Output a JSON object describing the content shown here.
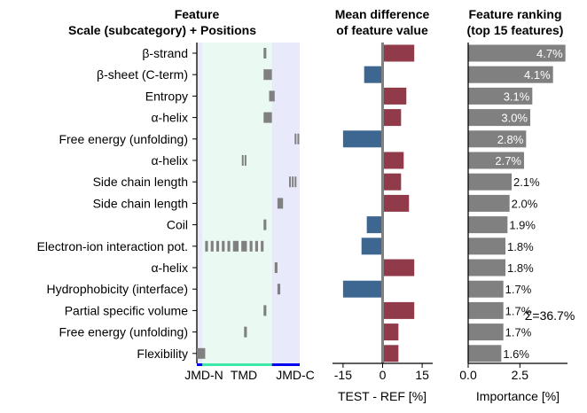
{
  "colors": {
    "jmd_bg": "#e9e9fc",
    "tmd_bg": "#eafaf3",
    "position_mark": "#808080",
    "positive": "#913a4a",
    "negative": "#3d6690",
    "ranking_bar": "#808080",
    "tmd_line": "#3ae8a8",
    "jmd_line": "#0000ee",
    "zero_line": "#808080"
  },
  "panels": {
    "feature": {
      "title_line1": "Feature",
      "title_line2": "Scale (subcategory)  +  Positions",
      "x_labels": [
        "JMD-N",
        "TMD",
        "JMD-C"
      ]
    },
    "difference": {
      "title_line1": "Mean difference",
      "title_line2": "of feature value",
      "xlabel": "TEST - REF [%]"
    },
    "ranking": {
      "title_line1": "Feature ranking",
      "title_line2": "(top 15 features)",
      "xlabel": "Importance [%]",
      "sum_label": "Σ=36.7%"
    }
  },
  "chart_data": [
    {
      "type": "table",
      "name": "feature-positions",
      "features": [
        "β-strand",
        "β-sheet (C-term)",
        "Entropy",
        "α-helix",
        "Free energy (unfolding)",
        "α-helix",
        "Side chain length",
        "Side chain length",
        "Coil",
        "Electron-ion interaction pot.",
        "α-helix",
        "Hydrophobicity (interface)",
        "Partial specific volume",
        "Free energy (unfolding)",
        "Flexibility"
      ],
      "positions": [
        [
          24
        ],
        [
          24,
          25,
          26
        ],
        [
          26,
          27
        ],
        [
          24,
          25,
          26
        ],
        [
          35,
          36
        ],
        [
          16,
          17
        ],
        [
          33,
          34,
          35
        ],
        [
          29,
          30
        ],
        [
          24
        ],
        [
          3,
          5,
          7,
          9,
          11,
          13,
          14,
          16,
          17,
          19,
          21,
          23
        ],
        [
          28
        ],
        [
          29
        ],
        [
          24
        ],
        [
          17
        ],
        [
          0,
          1,
          2
        ]
      ],
      "position_range": [
        0,
        37
      ],
      "regions": [
        {
          "name": "JMD-N",
          "start": 0,
          "end": 2
        },
        {
          "name": "TMD",
          "start": 2,
          "end": 27
        },
        {
          "name": "JMD-C",
          "start": 27,
          "end": 37
        }
      ]
    },
    {
      "type": "bar",
      "name": "mean-difference",
      "orientation": "horizontal",
      "categories": [
        "β-strand",
        "β-sheet (C-term)",
        "Entropy",
        "α-helix",
        "Free energy (unfolding)",
        "α-helix",
        "Side chain length",
        "Side chain length",
        "Coil",
        "Electron-ion interaction pot.",
        "α-helix",
        "Hydrophobicity (interface)",
        "Partial specific volume",
        "Free energy (unfolding)",
        "Flexibility"
      ],
      "values": [
        12,
        -7,
        9,
        7,
        -15,
        8,
        7,
        10,
        -6,
        -8,
        12,
        -15,
        12,
        6,
        6
      ],
      "xlim": [
        -19,
        19
      ],
      "xticks": [
        -15,
        0,
        15
      ],
      "xlabel": "TEST - REF [%]"
    },
    {
      "type": "bar",
      "name": "feature-ranking",
      "orientation": "horizontal",
      "categories": [
        "β-strand",
        "β-sheet (C-term)",
        "Entropy",
        "α-helix",
        "Free energy (unfolding)",
        "α-helix",
        "Side chain length",
        "Side chain length",
        "Coil",
        "Electron-ion interaction pot.",
        "α-helix",
        "Hydrophobicity (interface)",
        "Partial specific volume",
        "Free energy (unfolding)",
        "Flexibility"
      ],
      "values": [
        4.7,
        4.1,
        3.1,
        3.0,
        2.8,
        2.7,
        2.1,
        2.0,
        1.9,
        1.8,
        1.8,
        1.7,
        1.7,
        1.7,
        1.6
      ],
      "data_labels": [
        "4.7%",
        "4.1%",
        "3.1%",
        "3.0%",
        "2.8%",
        "2.7%",
        "2.1%",
        "2.0%",
        "1.9%",
        "1.8%",
        "1.8%",
        "1.7%",
        "1.7%",
        "1.7%",
        "1.6%"
      ],
      "xlim": [
        0,
        4.8
      ],
      "xticks": [
        0.0,
        2.5
      ],
      "xtick_labels": [
        "0.0",
        "2.5"
      ],
      "xlabel": "Importance [%]",
      "annotation": "Σ=36.7%"
    }
  ]
}
